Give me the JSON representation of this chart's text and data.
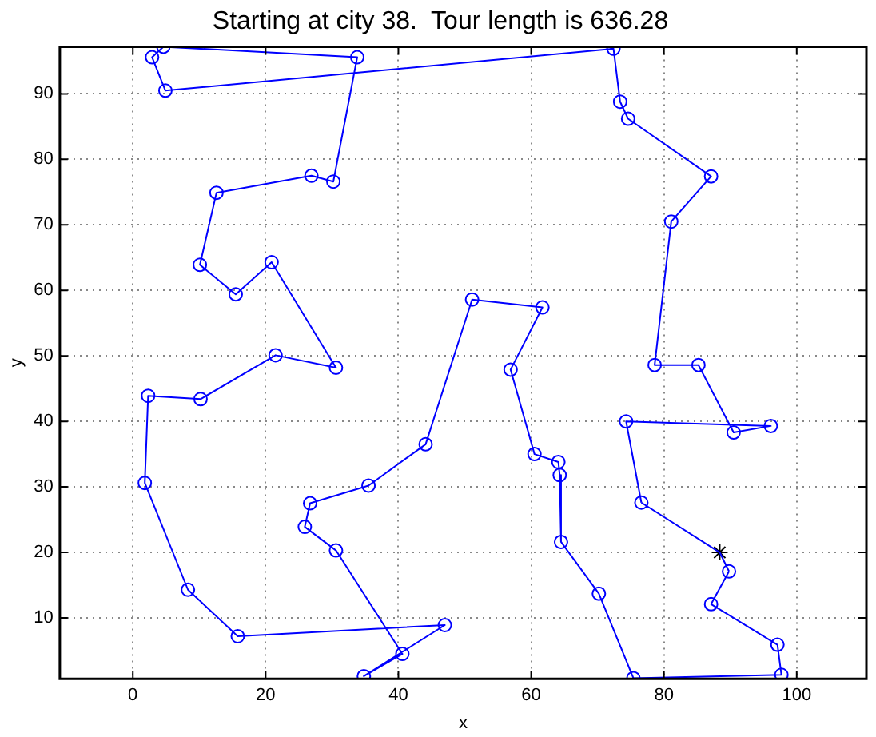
{
  "chart_data": {
    "type": "line",
    "title": "Starting at city 38.  Tour length is 636.28",
    "xlabel": "x",
    "ylabel": "y",
    "xlim": [
      -11,
      110.5
    ],
    "ylim": [
      0.7,
      97.2
    ],
    "xticks": [
      0,
      20,
      40,
      60,
      80,
      100
    ],
    "yticks": [
      10,
      20,
      30,
      40,
      50,
      60,
      70,
      80,
      90
    ],
    "grid": true,
    "legend": false,
    "series": [
      {
        "marker": "circle",
        "color": "#0000ff",
        "x": [
          76.6,
          74.3,
          96.1,
          90.5,
          85.2,
          78.6,
          81.1,
          87.1,
          74.6,
          73.4,
          72.4,
          4.9,
          2.9,
          4.6,
          33.8,
          30.2,
          26.9,
          12.6,
          10.1,
          15.5,
          20.9,
          30.6,
          21.5,
          10.2,
          2.3,
          1.8,
          8.3,
          15.8,
          47.0,
          34.8,
          40.6,
          30.6,
          25.9,
          26.7,
          35.5,
          44.1,
          51.1,
          61.7,
          56.9,
          60.5,
          64.1,
          64.3,
          64.5,
          70.2,
          75.4,
          97.7,
          97.1,
          87.1,
          89.8
        ],
        "values": [
          27.6,
          40.0,
          39.3,
          38.3,
          48.6,
          48.6,
          70.5,
          77.4,
          86.2,
          88.8,
          96.9,
          90.5,
          95.6,
          97.2,
          95.6,
          76.6,
          77.5,
          74.9,
          63.9,
          59.4,
          64.3,
          48.2,
          50.1,
          43.4,
          43.9,
          30.6,
          14.3,
          7.2,
          8.9,
          1.1,
          4.5,
          20.3,
          23.9,
          27.5,
          30.2,
          36.5,
          58.6,
          57.4,
          47.9,
          35.0,
          33.8,
          31.8,
          21.6,
          13.7,
          0.8,
          1.3,
          5.9,
          12.1,
          17.1
        ]
      },
      {
        "marker": "none",
        "color": "#0000ff",
        "x": [
          89.8,
          88.4,
          76.6
        ],
        "values": [
          17.1,
          20.0,
          27.6
        ]
      },
      {
        "type": "scatter",
        "marker": "cross",
        "color": "#000000",
        "x": [
          88.4
        ],
        "values": [
          20.0
        ]
      }
    ]
  }
}
